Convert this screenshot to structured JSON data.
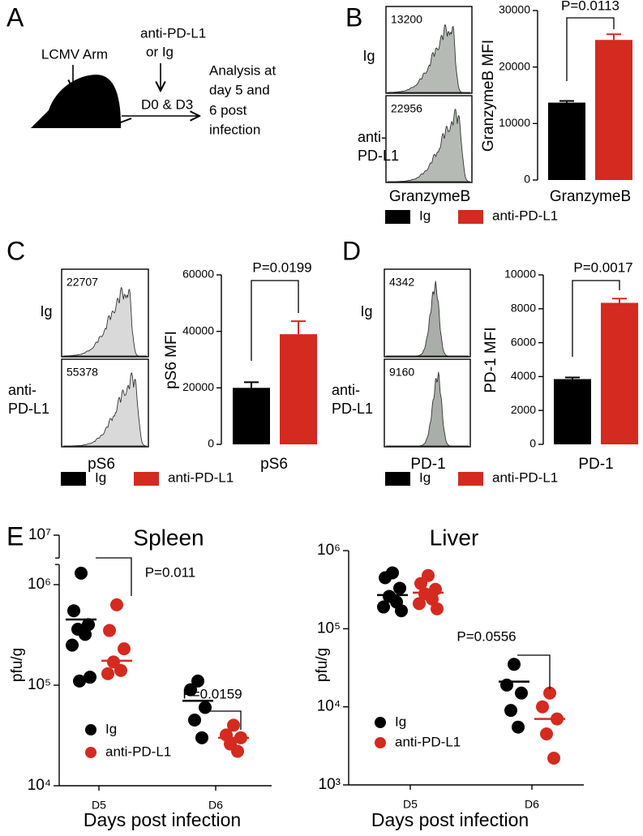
{
  "panel_labels": [
    "A",
    "B",
    "C",
    "D",
    "E"
  ],
  "schematic": {
    "infection": "LCMV Arm",
    "treatment": [
      "anti-PD-L1",
      "or Ig"
    ],
    "days": "D0 & D3",
    "analysis": [
      "Analysis at",
      "day 5 and",
      "6 post",
      "infection"
    ]
  },
  "chart_data": [
    {
      "type": "bar",
      "ylabel": "GranzymeB MFI",
      "xlabel": "GranzymeB",
      "annotation": "P=0.0113",
      "ylim": [
        0,
        30000
      ],
      "yticks": [
        0,
        10000,
        20000,
        30000
      ],
      "legend": "bottom",
      "series": [
        {
          "name": "Ig",
          "color": "#000000",
          "values": [
            13700
          ],
          "errors": [
            300
          ]
        },
        {
          "name": "anti-PD-L1",
          "color": "#d42a20",
          "values": [
            24800
          ],
          "errors": [
            1000
          ]
        }
      ],
      "histogram": {
        "xlabel": "GranzymeB",
        "mfi": [
          13200,
          22956
        ],
        "rows": [
          [
            "Ig"
          ],
          [
            "anti-",
            "PD-L1"
          ]
        ]
      }
    },
    {
      "type": "bar",
      "ylabel": "pS6 MFI",
      "xlabel": "pS6",
      "annotation": "P=0.0199",
      "ylim": [
        0,
        60000
      ],
      "yticks": [
        0,
        20000,
        40000,
        60000
      ],
      "legend": "bottom",
      "series": [
        {
          "name": "Ig",
          "color": "#000000",
          "values": [
            20000
          ],
          "errors": [
            2000
          ]
        },
        {
          "name": "anti-PD-L1",
          "color": "#d42a20",
          "values": [
            39000
          ],
          "errors": [
            4600
          ]
        }
      ],
      "histogram": {
        "xlabel": "pS6",
        "mfi": [
          22707,
          55378
        ],
        "rows": [
          [
            "Ig"
          ],
          [
            "anti-",
            "PD-L1"
          ]
        ]
      }
    },
    {
      "type": "bar",
      "ylabel": "PD-1 MFI",
      "xlabel": "PD-1",
      "annotation": "P=0.0017",
      "ylim": [
        0,
        10000
      ],
      "yticks": [
        0,
        2000,
        4000,
        6000,
        8000,
        10000
      ],
      "legend": "bottom",
      "series": [
        {
          "name": "Ig",
          "color": "#000000",
          "values": [
            3850
          ],
          "errors": [
            100
          ]
        },
        {
          "name": "anti-PD-L1",
          "color": "#d42a20",
          "values": [
            8350
          ],
          "errors": [
            250
          ]
        }
      ],
      "histogram": {
        "xlabel": "PD-1",
        "mfi": [
          4342,
          9160
        ],
        "rows": [
          [
            "Ig"
          ],
          [
            "anti-",
            "PD-L1"
          ]
        ]
      }
    },
    {
      "type": "scatter",
      "title": "Spleen",
      "xlabel": "Days post infection",
      "ylabel": "pfu/g",
      "categories": [
        "D5",
        "D6"
      ],
      "log_scale": true,
      "ylim": [
        10000,
        10000000
      ],
      "yticks": [
        {
          "value": 10000,
          "label": "10⁴"
        },
        {
          "value": 100000,
          "label": "10⁵"
        },
        {
          "value": 1000000,
          "label": "10⁶"
        },
        {
          "value": 10000000,
          "label": "10⁷"
        }
      ],
      "legend": "lower left",
      "annotations": [
        "P=0.011",
        "P=0.0159"
      ],
      "series": [
        {
          "name": "Ig",
          "color": "#000000",
          "values": [
            [
              1300000,
              550000,
              400000,
              360000,
              320000,
              250000,
              120000,
              110000
            ],
            [
              110000,
              90000,
              60000,
              45000,
              30000
            ]
          ],
          "means": [
            450000,
            70000
          ]
        },
        {
          "name": "anti-PD-L1",
          "color": "#d42a20",
          "values": [
            [
              630000,
              350000,
              230000,
              170000,
              140000,
              130000
            ],
            [
              40000,
              32000,
              30000,
              26000,
              22000
            ]
          ],
          "means": [
            175000,
            30000
          ]
        }
      ]
    },
    {
      "type": "scatter",
      "title": "Liver",
      "xlabel": "Days post infection",
      "ylabel": "pfu/g",
      "categories": [
        "D5",
        "D6"
      ],
      "log_scale": true,
      "ylim": [
        1000,
        1000000
      ],
      "yticks": [
        {
          "value": 1000,
          "label": "10³"
        },
        {
          "value": 10000,
          "label": "10⁴"
        },
        {
          "value": 100000,
          "label": "10⁵"
        },
        {
          "value": 1000000,
          "label": "10⁶"
        }
      ],
      "legend": "lower left",
      "annotations": [
        "P=0.0556"
      ],
      "series": [
        {
          "name": "Ig",
          "color": "#000000",
          "values": [
            [
              520000,
              450000,
              330000,
              260000,
              220000,
              190000,
              170000
            ],
            [
              35000,
              19000,
              15000,
              9000,
              5500
            ]
          ],
          "means": [
            270000,
            21000
          ]
        },
        {
          "name": "anti-PD-L1",
          "color": "#d42a20",
          "values": [
            [
              480000,
              380000,
              320000,
              280000,
              240000,
              210000,
              180000
            ],
            [
              15000,
              10000,
              7000,
              4500,
              2200
            ]
          ],
          "means": [
            290000,
            7000
          ]
        }
      ]
    }
  ]
}
